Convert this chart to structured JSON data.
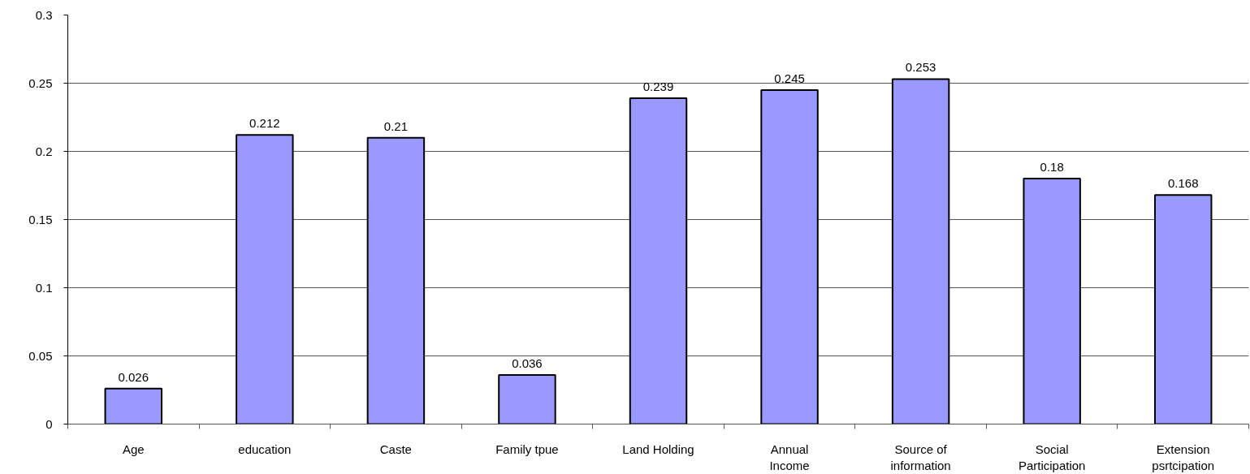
{
  "chart_data": {
    "type": "bar",
    "categories": [
      "Age",
      "education",
      "Caste",
      "Family tpue",
      "Land Holding",
      "Annual Income",
      "Source of information",
      "Social Participation",
      "Extension psrtcipation"
    ],
    "values": [
      0.026,
      0.212,
      0.21,
      0.036,
      0.239,
      0.245,
      0.253,
      0.18,
      0.168
    ],
    "color": "#9999ff",
    "ylim": [
      0,
      0.3
    ],
    "yticks": [
      0,
      0.05,
      0.1,
      0.15,
      0.2,
      0.25,
      0.3
    ],
    "grid": "y",
    "data_labels": true
  }
}
